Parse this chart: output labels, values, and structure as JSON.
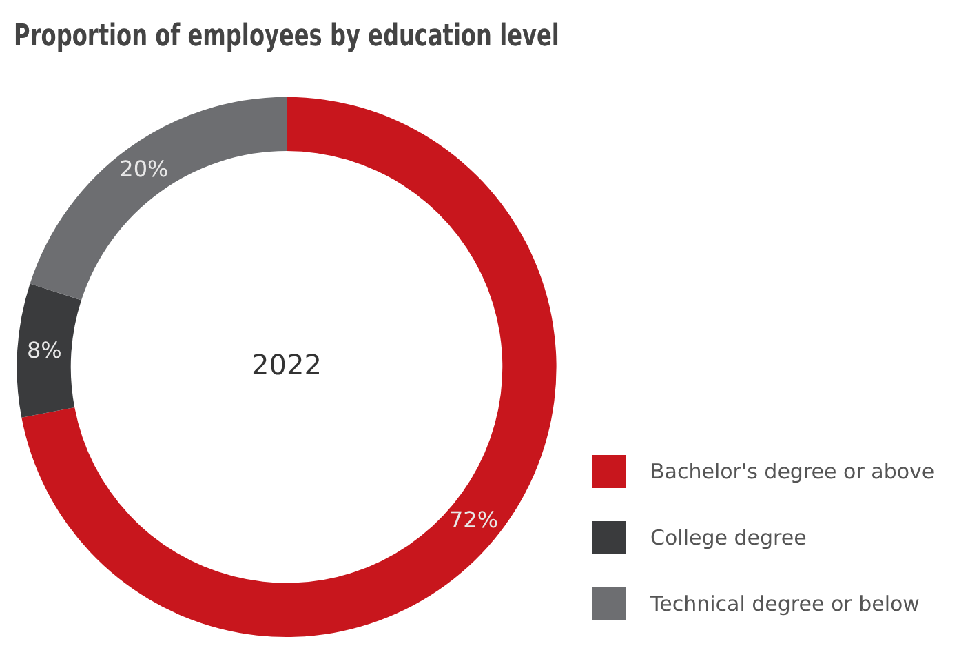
{
  "chart_data": {
    "type": "donut",
    "title": "Proportion of employees by education level",
    "categories": [
      "Bachelor's degree or above",
      "College degree",
      "Technical degree or below"
    ],
    "values": [
      72,
      8,
      20
    ],
    "colors": [
      "#c8161d",
      "#3a3b3d",
      "#6d6e71"
    ],
    "value_labels": [
      "72%",
      "8%",
      "20%"
    ],
    "annotations": [
      "2022"
    ],
    "legend": "bottom right"
  }
}
